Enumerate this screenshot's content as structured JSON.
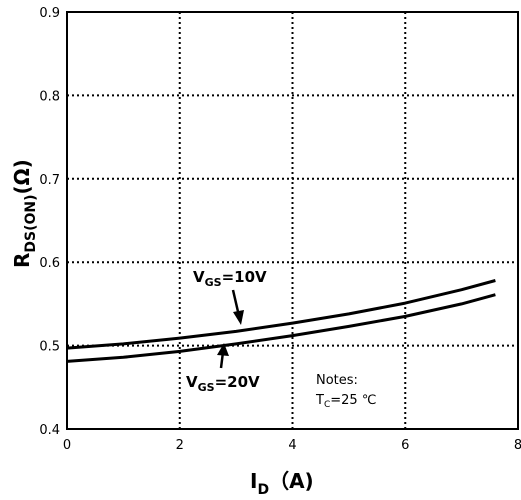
{
  "chart_data": {
    "type": "line",
    "xlim": [
      0,
      8
    ],
    "ylim": [
      0.4,
      0.9
    ],
    "x_ticks": [
      "0",
      "2",
      "4",
      "6",
      "8"
    ],
    "y_ticks": [
      "0.4",
      "0.5",
      "0.6",
      "0.7",
      "0.8",
      "0.9"
    ],
    "grid": true,
    "xlabel": {
      "main": "I",
      "sub": "D",
      "rest": "（A)"
    },
    "ylabel": {
      "main": "R",
      "sub": "DS(ON)",
      "rest": "(Ω)"
    },
    "series": [
      {
        "name": {
          "main": "V",
          "sub": "GS",
          "rest": "=10V"
        },
        "x": [
          0,
          1,
          2,
          3,
          4,
          5,
          6,
          7,
          7.6
        ],
        "y": [
          0.497,
          0.502,
          0.509,
          0.517,
          0.527,
          0.538,
          0.551,
          0.567,
          0.578
        ]
      },
      {
        "name": {
          "main": "V",
          "sub": "GS",
          "rest": "=20V"
        },
        "x": [
          0,
          1,
          2,
          3,
          4,
          5,
          6,
          7,
          7.6
        ],
        "y": [
          0.481,
          0.486,
          0.493,
          0.502,
          0.512,
          0.523,
          0.535,
          0.55,
          0.561
        ]
      }
    ],
    "annotations": {
      "note_title": "Notes:",
      "note_cond": {
        "main": "T",
        "sub": "C",
        "rest": "=25 ℃"
      }
    }
  }
}
